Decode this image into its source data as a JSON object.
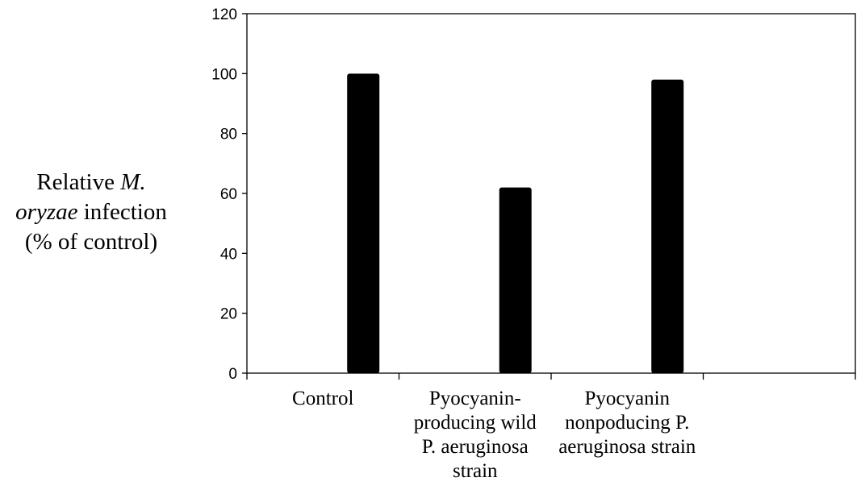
{
  "chart_data": {
    "type": "bar",
    "title": "",
    "categories": [
      "Control",
      "Pyocyanin-\nproducing wild\nP. aeruginosa\nstrain",
      "Pyocyanin\nnonpoducing P.\naeruginosa strain",
      ""
    ],
    "values": [
      100,
      62,
      98,
      null
    ],
    "ylabel": {
      "line1_prefix": "Relative ",
      "line1_italic": "M.",
      "line2_italic": "oryzae",
      "line2_suffix": " infection",
      "line3": "(% of control)"
    },
    "ylim": [
      0,
      120
    ],
    "yticks": [
      0,
      20,
      40,
      60,
      80,
      100,
      120
    ],
    "bar_color": "#000000",
    "grid": false,
    "legend": "none"
  }
}
